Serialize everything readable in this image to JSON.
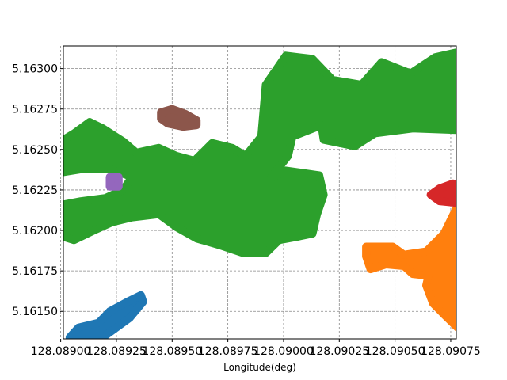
{
  "chart_data": {
    "type": "scatter",
    "title": "",
    "xlabel": "Longitude(deg)",
    "ylabel": "",
    "xlim": [
      128.089012,
      128.090775
    ],
    "ylim": [
      5.16133,
      5.16314
    ],
    "grid": true,
    "grid_style": "dashed",
    "x_ticks": [
      128.089,
      128.08925,
      128.0895,
      128.08975,
      128.09,
      128.09025,
      128.0905,
      128.09075
    ],
    "x_tick_labels": [
      "128.08900",
      "128.08925",
      "128.08950",
      "128.08975",
      "128.09000",
      "128.09025",
      "128.09050",
      "128.09075"
    ],
    "y_ticks": [
      5.1615,
      5.16175,
      5.162,
      5.16225,
      5.1625,
      5.16275,
      5.163
    ],
    "y_tick_labels": [
      "5.16150",
      "5.16175",
      "5.16200",
      "5.16225",
      "5.16250",
      "5.16275",
      "5.16300"
    ],
    "series": [
      {
        "color": "#1f77b4",
        "regions": [
          [
            [
              128.08904,
              5.16134
            ],
            [
              128.08908,
              5.1614
            ],
            [
              128.08917,
              5.16143
            ],
            [
              128.08922,
              5.1615
            ],
            [
              128.0893,
              5.16156
            ],
            [
              128.08936,
              5.1616
            ],
            [
              128.08937,
              5.16156
            ],
            [
              128.08931,
              5.16146
            ],
            [
              128.08923,
              5.16138
            ],
            [
              128.08918,
              5.16133
            ],
            [
              128.08904,
              5.16133
            ]
          ]
        ]
      },
      {
        "color": "#ff7f0e",
        "regions": [
          [
            [
              128.09049,
              5.1619
            ],
            [
              128.09054,
              5.16185
            ],
            [
              128.09064,
              5.16187
            ],
            [
              128.09072,
              5.16198
            ],
            [
              128.09078,
              5.16215
            ],
            [
              128.09078,
              5.1614
            ],
            [
              128.09072,
              5.16148
            ],
            [
              128.09067,
              5.16155
            ],
            [
              128.09064,
              5.16166
            ],
            [
              128.09065,
              5.16172
            ],
            [
              128.09058,
              5.16173
            ],
            [
              128.09054,
              5.16178
            ],
            [
              128.09046,
              5.16179
            ],
            [
              128.09039,
              5.16176
            ],
            [
              128.09037,
              5.16184
            ],
            [
              128.09037,
              5.1619
            ],
            [
              128.09049,
              5.1619
            ]
          ]
        ]
      },
      {
        "color": "#2ca02c",
        "regions": [
          [
            [
              128.089012,
              5.16256
            ],
            [
              128.08906,
              5.1626
            ],
            [
              128.08913,
              5.16267
            ],
            [
              128.08919,
              5.16263
            ],
            [
              128.08928,
              5.16255
            ],
            [
              128.08934,
              5.16248
            ],
            [
              128.08944,
              5.16251
            ],
            [
              128.08952,
              5.16246
            ],
            [
              128.0896,
              5.16243
            ],
            [
              128.08968,
              5.16254
            ],
            [
              128.08977,
              5.16251
            ],
            [
              128.08983,
              5.16246
            ],
            [
              128.0899,
              5.16258
            ],
            [
              128.08992,
              5.1629
            ],
            [
              128.09001,
              5.16308
            ],
            [
              128.09013,
              5.16306
            ],
            [
              128.09022,
              5.16293
            ],
            [
              128.09035,
              5.1629
            ],
            [
              128.09044,
              5.16304
            ],
            [
              128.09057,
              5.16297
            ],
            [
              128.09068,
              5.16307
            ],
            [
              128.090775,
              5.1631
            ],
            [
              128.090775,
              5.16262
            ],
            [
              128.09058,
              5.16263
            ],
            [
              128.09041,
              5.1626
            ],
            [
              128.09032,
              5.16252
            ],
            [
              128.09018,
              5.16256
            ],
            [
              128.09017,
              5.16265
            ],
            [
              128.09004,
              5.16258
            ],
            [
              128.09002,
              5.16246
            ],
            [
              128.08994,
              5.16232
            ],
            [
              128.09001,
              5.16237
            ],
            [
              128.09016,
              5.16234
            ],
            [
              128.09018,
              5.16222
            ],
            [
              128.09015,
              5.1621
            ],
            [
              128.09013,
              5.16198
            ],
            [
              128.09006,
              5.16196
            ],
            [
              128.08998,
              5.16194
            ],
            [
              128.08992,
              5.16186
            ],
            [
              128.08982,
              5.16186
            ],
            [
              128.08971,
              5.16191
            ],
            [
              128.08961,
              5.16195
            ],
            [
              128.08952,
              5.16202
            ],
            [
              128.08944,
              5.1621
            ],
            [
              128.08932,
              5.16208
            ],
            [
              128.08923,
              5.16205
            ],
            [
              128.08915,
              5.162
            ],
            [
              128.08906,
              5.16194
            ],
            [
              128.089012,
              5.16196
            ],
            [
              128.089012,
              5.16216
            ],
            [
              128.08909,
              5.16218
            ],
            [
              128.0892,
              5.1622
            ],
            [
              128.08928,
              5.16225
            ],
            [
              128.08932,
              5.16233
            ],
            [
              128.08922,
              5.16238
            ],
            [
              128.0891,
              5.16238
            ],
            [
              128.089012,
              5.16236
            ],
            [
              128.089012,
              5.16256
            ]
          ]
        ]
      },
      {
        "color": "#d62728",
        "regions": [
          [
            [
              128.09066,
              5.16222
            ],
            [
              128.0907,
              5.16226
            ],
            [
              128.09076,
              5.16229
            ],
            [
              128.090775,
              5.16228
            ],
            [
              128.090775,
              5.16217
            ],
            [
              128.0907,
              5.16218
            ],
            [
              128.09066,
              5.16222
            ]
          ]
        ]
      },
      {
        "color": "#9467bd",
        "regions": [
          [
            [
              128.08922,
              5.16227
            ],
            [
              128.08926,
              5.16227
            ],
            [
              128.08926,
              5.16233
            ],
            [
              128.08922,
              5.16233
            ],
            [
              128.08922,
              5.16227
            ]
          ]
        ]
      },
      {
        "color": "#8c564b",
        "regions": [
          [
            [
              128.08945,
              5.16273
            ],
            [
              128.0895,
              5.16275
            ],
            [
              128.08956,
              5.16272
            ],
            [
              128.08961,
              5.16268
            ],
            [
              128.08961,
              5.16265
            ],
            [
              128.08955,
              5.16264
            ],
            [
              128.08948,
              5.16266
            ],
            [
              128.08945,
              5.16269
            ],
            [
              128.08945,
              5.16273
            ]
          ]
        ]
      }
    ]
  }
}
